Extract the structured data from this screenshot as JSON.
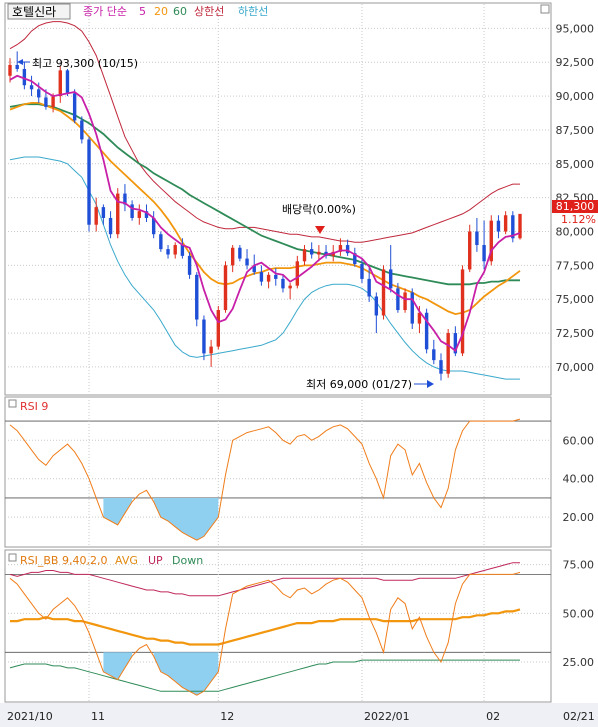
{
  "colors": {
    "up": "#e0301e",
    "down": "#1f4fd6",
    "ma5": "#c81fa8",
    "ma20": "#f2960d",
    "ma60": "#2e8b57",
    "upper": "#c0283c",
    "lower": "#3aa9cc",
    "rsi": "#f07d1a",
    "rsi_fill": "#8fd0f0",
    "bb_avg": "#f2960d",
    "bb_up": "#c0285a",
    "bb_down": "#2e8b57",
    "grid": "#c9c9c9",
    "price_tag": "#e0201a"
  },
  "legend": {
    "stock_name": "호텔신라",
    "ma_label": "종가 단순",
    "ma5": "5",
    "ma20": "20",
    "ma60": "60",
    "upper": "상한선",
    "lower": "하한선"
  },
  "rsi_panel": {
    "title": "RSI 9"
  },
  "rsi_bb_panel": {
    "title": "RSI_BB 9,40,2,0",
    "avg": "AVG",
    "up": "UP",
    "down": "Down"
  },
  "annotations": {
    "high": "최고 93,300 (10/15)",
    "low": "최저 69,000 (01/27)",
    "dividend": "배당락(0.00%)"
  },
  "current": {
    "price": "81,300",
    "change": "1.12%"
  },
  "chart_data": [
    {
      "type": "candlestick",
      "yticks": [
        "95,000",
        "92,500",
        "90,000",
        "87,500",
        "85,000",
        "82,500",
        "80,000",
        "77,500",
        "75,000",
        "72,500",
        "70,000"
      ],
      "ytick_values": [
        95000,
        92500,
        90000,
        87500,
        85000,
        82500,
        80000,
        77500,
        75000,
        72500,
        70000
      ],
      "ylim": [
        68000,
        96800
      ],
      "candles": [
        [
          91500,
          92800,
          91000,
          92300
        ],
        [
          92300,
          93300,
          91800,
          92000
        ],
        [
          92000,
          92500,
          90500,
          90800
        ],
        [
          90800,
          91500,
          90000,
          90500
        ],
        [
          90500,
          91000,
          89500,
          89900
        ],
        [
          89900,
          90500,
          89000,
          89200
        ],
        [
          89200,
          90200,
          88800,
          90000
        ],
        [
          90000,
          92200,
          89500,
          91900
        ],
        [
          91900,
          92000,
          90000,
          90200
        ],
        [
          90200,
          90500,
          88000,
          88200
        ],
        [
          88200,
          88500,
          86500,
          86800
        ],
        [
          86800,
          87000,
          80000,
          80500
        ],
        [
          80500,
          82500,
          80000,
          81800
        ],
        [
          81800,
          82000,
          80500,
          81000
        ],
        [
          81000,
          81500,
          79500,
          79800
        ],
        [
          79800,
          83200,
          79500,
          82800
        ],
        [
          82800,
          83500,
          81500,
          82000
        ],
        [
          82000,
          82300,
          80800,
          81000
        ],
        [
          81000,
          82000,
          80500,
          81500
        ],
        [
          81500,
          82000,
          80700,
          81000
        ],
        [
          81000,
          81500,
          79500,
          79800
        ],
        [
          79800,
          80000,
          78500,
          78700
        ],
        [
          78700,
          79000,
          78000,
          78300
        ],
        [
          78300,
          79200,
          78000,
          79000
        ],
        [
          79000,
          79500,
          78000,
          78200
        ],
        [
          78200,
          78500,
          76500,
          76800
        ],
        [
          76800,
          77000,
          73000,
          73500
        ],
        [
          73500,
          73800,
          70500,
          71000
        ],
        [
          71000,
          72000,
          70000,
          71500
        ],
        [
          71500,
          74500,
          71300,
          74200
        ],
        [
          74200,
          77800,
          74000,
          77500
        ],
        [
          77500,
          79000,
          77000,
          78800
        ],
        [
          78800,
          79000,
          77800,
          78000
        ],
        [
          78000,
          78700,
          77200,
          77500
        ],
        [
          77500,
          78300,
          76800,
          77000
        ],
        [
          77000,
          77500,
          76000,
          76300
        ],
        [
          76300,
          77000,
          75800,
          76800
        ],
        [
          76800,
          77300,
          76000,
          76500
        ],
        [
          76500,
          76800,
          75500,
          75800
        ],
        [
          75800,
          76200,
          75000,
          76000
        ],
        [
          76000,
          78200,
          75800,
          77800
        ],
        [
          77800,
          79000,
          77500,
          78700
        ],
        [
          78700,
          79200,
          78000,
          78300
        ],
        [
          78300,
          79000,
          77800,
          78500
        ],
        [
          78500,
          79000,
          78000,
          78200
        ],
        [
          78200,
          79000,
          77800,
          78500
        ],
        [
          78500,
          79500,
          78200,
          79000
        ],
        [
          79000,
          79400,
          78200,
          78400
        ],
        [
          78400,
          78800,
          77400,
          77600
        ],
        [
          77600,
          78000,
          76200,
          76500
        ],
        [
          76500,
          77300,
          74800,
          75200
        ],
        [
          75200,
          75500,
          72500,
          73800
        ],
        [
          73800,
          77500,
          73500,
          77200
        ],
        [
          77200,
          79000,
          75500,
          75800
        ],
        [
          75800,
          76200,
          74000,
          74200
        ],
        [
          74200,
          75800,
          74000,
          75500
        ],
        [
          75500,
          75800,
          72800,
          73200
        ],
        [
          73200,
          74500,
          72500,
          74000
        ],
        [
          74000,
          74300,
          71000,
          71300
        ],
        [
          71300,
          72000,
          70200,
          70500
        ],
        [
          70500,
          71000,
          69000,
          69500
        ],
        [
          69500,
          72800,
          69200,
          72500
        ],
        [
          72500,
          73000,
          70800,
          71000
        ],
        [
          71000,
          77500,
          70800,
          77200
        ],
        [
          77200,
          80500,
          77000,
          80000
        ],
        [
          80000,
          81000,
          78500,
          79000
        ],
        [
          79000,
          80800,
          77200,
          77800
        ],
        [
          77800,
          81200,
          77500,
          80800
        ],
        [
          80800,
          81200,
          79500,
          80000
        ],
        [
          80000,
          81500,
          79800,
          81200
        ],
        [
          81200,
          81500,
          79200,
          79500
        ],
        [
          79500,
          81300,
          79400,
          81300
        ]
      ],
      "ma5": [
        91200,
        91500,
        91300,
        91100,
        90700,
        90300,
        90000,
        90100,
        90200,
        90300,
        89900,
        88700,
        87200,
        85300,
        83000,
        82200,
        82100,
        81700,
        81600,
        81400,
        81000,
        80300,
        79800,
        79400,
        79000,
        78800,
        77500,
        75700,
        74200,
        73300,
        73500,
        74300,
        75700,
        77000,
        77500,
        77700,
        77300,
        76900,
        76800,
        76300,
        76600,
        77000,
        77400,
        77900,
        78300,
        78400,
        78600,
        78600,
        78300,
        78000,
        77400,
        76300,
        76000,
        75700,
        75300,
        75000,
        75000,
        74100,
        73400,
        72700,
        71900,
        71600,
        71200,
        72400,
        74000,
        76100,
        77000,
        78600,
        79200,
        79600,
        79700,
        79900
      ],
      "ma20": [
        89000,
        89200,
        89400,
        89500,
        89500,
        89300,
        89100,
        88900,
        88500,
        88100,
        87600,
        87000,
        86400,
        85800,
        85200,
        84700,
        84200,
        83700,
        83200,
        82700,
        82200,
        81600,
        80900,
        80100,
        79200,
        78400,
        77700,
        77000,
        76500,
        76200,
        76100,
        76200,
        76500,
        76700,
        76900,
        77000,
        77200,
        77300,
        77300,
        77300,
        77400,
        77500,
        77500,
        77600,
        77700,
        77700,
        77700,
        77600,
        77500,
        77300,
        77000,
        76700,
        76400,
        76100,
        75900,
        75700,
        75500,
        75200,
        75000,
        74700,
        74400,
        74100,
        73900,
        74000,
        74200,
        74700,
        75200,
        75600,
        76000,
        76300,
        76700,
        77100
      ],
      "ma60": [
        89200,
        89300,
        89400,
        89400,
        89400,
        89300,
        89200,
        89000,
        88800,
        88600,
        88300,
        88000,
        87600,
        87200,
        86700,
        86200,
        85800,
        85400,
        85000,
        84700,
        84300,
        84000,
        83700,
        83400,
        83100,
        82700,
        82400,
        82100,
        81800,
        81500,
        81200,
        80900,
        80600,
        80300,
        80000,
        79700,
        79500,
        79300,
        79100,
        78900,
        78700,
        78600,
        78500,
        78400,
        78300,
        78200,
        78100,
        78000,
        77900,
        77700,
        77500,
        77300,
        77100,
        76900,
        76800,
        76700,
        76600,
        76500,
        76400,
        76300,
        76200,
        76100,
        76100,
        76100,
        76100,
        76200,
        76200,
        76300,
        76300,
        76400,
        76400,
        76400
      ],
      "upper": [
        93500,
        93800,
        94200,
        94800,
        95200,
        95400,
        95500,
        95500,
        95400,
        95200,
        94800,
        94000,
        93000,
        91500,
        90000,
        88500,
        87000,
        86000,
        85000,
        84300,
        83700,
        83200,
        82700,
        82200,
        81800,
        81400,
        81000,
        80700,
        80500,
        80300,
        80200,
        80200,
        80300,
        80300,
        80300,
        80200,
        80100,
        80000,
        79900,
        79800,
        79800,
        79700,
        79600,
        79600,
        79500,
        79400,
        79300,
        79300,
        79200,
        79200,
        79300,
        79400,
        79500,
        79600,
        79700,
        79800,
        79900,
        80100,
        80300,
        80500,
        80700,
        80900,
        81100,
        81300,
        81600,
        82000,
        82400,
        82800,
        83100,
        83300,
        83500,
        83500
      ],
      "lower": [
        85300,
        85400,
        85500,
        85500,
        85500,
        85400,
        85300,
        85200,
        85000,
        84500,
        84000,
        83000,
        82000,
        80500,
        79000,
        77800,
        76800,
        76000,
        75400,
        74800,
        74200,
        73400,
        72500,
        71600,
        71100,
        70800,
        70700,
        70800,
        70900,
        71000,
        71100,
        71200,
        71300,
        71400,
        71500,
        71600,
        71800,
        72000,
        72500,
        73300,
        74200,
        75000,
        75500,
        75800,
        76000,
        76100,
        76100,
        76100,
        76000,
        75800,
        75400,
        74800,
        74000,
        73200,
        72500,
        71800,
        71200,
        70700,
        70300,
        70000,
        69800,
        69700,
        69700,
        69700,
        69600,
        69500,
        69400,
        69300,
        69200,
        69100,
        69100,
        69100
      ]
    },
    {
      "type": "line",
      "title": "RSI 9",
      "yticks": [
        "60.00",
        "40.00",
        "20.00"
      ],
      "ytick_values": [
        60,
        40,
        20
      ],
      "ylim": [
        5,
        82
      ],
      "reference_lines": [
        70,
        30
      ],
      "values": [
        68,
        65,
        60,
        55,
        50,
        47,
        52,
        55,
        58,
        54,
        48,
        40,
        30,
        20,
        18,
        16,
        22,
        28,
        32,
        34,
        28,
        20,
        18,
        15,
        12,
        10,
        8,
        10,
        15,
        20,
        42,
        60,
        62,
        64,
        65,
        66,
        67,
        64,
        60,
        58,
        62,
        63,
        60,
        62,
        65,
        67,
        68,
        66,
        62,
        58,
        48,
        40,
        30,
        52,
        58,
        55,
        42,
        48,
        38,
        30,
        25,
        35,
        55,
        65,
        70,
        70,
        70,
        70,
        70,
        70,
        70,
        71
      ]
    },
    {
      "type": "line",
      "title": "RSI_BB 9,40,2,0",
      "yticks": [
        "75.00",
        "50.00",
        "25.00"
      ],
      "ytick_values": [
        75,
        50,
        25
      ],
      "ylim": [
        5,
        82
      ],
      "reference_lines": [
        70,
        30
      ],
      "rsi": [
        68,
        65,
        60,
        55,
        50,
        47,
        52,
        55,
        58,
        54,
        48,
        40,
        30,
        20,
        18,
        16,
        22,
        28,
        32,
        34,
        28,
        20,
        18,
        15,
        12,
        10,
        8,
        10,
        15,
        20,
        42,
        60,
        62,
        64,
        65,
        66,
        67,
        64,
        60,
        58,
        62,
        63,
        60,
        62,
        65,
        67,
        68,
        66,
        62,
        58,
        48,
        40,
        30,
        52,
        58,
        55,
        42,
        48,
        38,
        30,
        25,
        35,
        55,
        65,
        70,
        70,
        70,
        70,
        70,
        70,
        70,
        71
      ],
      "avg": [
        46,
        46,
        47,
        47,
        47,
        48,
        47,
        47,
        47,
        46,
        46,
        45,
        44,
        43,
        42,
        41,
        40,
        39,
        38,
        37,
        37,
        36,
        36,
        35,
        35,
        34,
        34,
        34,
        34,
        34,
        35,
        36,
        37,
        38,
        39,
        40,
        41,
        42,
        43,
        44,
        45,
        45,
        45,
        46,
        46,
        46,
        47,
        47,
        47,
        47,
        47,
        47,
        46,
        46,
        46,
        46,
        46,
        47,
        47,
        47,
        47,
        47,
        47,
        48,
        48,
        49,
        49,
        50,
        50,
        51,
        51,
        52
      ],
      "up": [
        70,
        69,
        70,
        71,
        71,
        72,
        72,
        71,
        71,
        70,
        70,
        70,
        69,
        68,
        67,
        66,
        65,
        64,
        63,
        62,
        62,
        61,
        61,
        60,
        60,
        59,
        59,
        59,
        59,
        59,
        60,
        61,
        62,
        63,
        64,
        65,
        66,
        67,
        68,
        68,
        68,
        68,
        68,
        68,
        68,
        68,
        68,
        68,
        68,
        68,
        68,
        68,
        67,
        67,
        67,
        67,
        67,
        68,
        68,
        68,
        68,
        68,
        68,
        69,
        70,
        71,
        72,
        73,
        74,
        75,
        76,
        76
      ],
      "down": [
        22,
        23,
        24,
        24,
        24,
        24,
        23,
        23,
        22,
        22,
        21,
        20,
        19,
        18,
        17,
        16,
        15,
        14,
        13,
        12,
        11,
        10,
        10,
        10,
        10,
        10,
        10,
        10,
        10,
        10,
        11,
        12,
        13,
        14,
        15,
        16,
        17,
        18,
        19,
        20,
        21,
        22,
        23,
        24,
        24,
        25,
        25,
        25,
        25,
        26,
        26,
        26,
        26,
        26,
        26,
        26,
        26,
        26,
        26,
        26,
        26,
        26,
        26,
        26,
        26,
        26,
        26,
        26,
        26,
        26,
        26,
        26
      ]
    }
  ],
  "xaxis": {
    "labels": [
      "2021/10",
      "11",
      "12",
      "2022/01",
      "02",
      "02/21"
    ],
    "label_index": [
      0,
      11,
      29,
      49,
      66,
      0
    ]
  }
}
